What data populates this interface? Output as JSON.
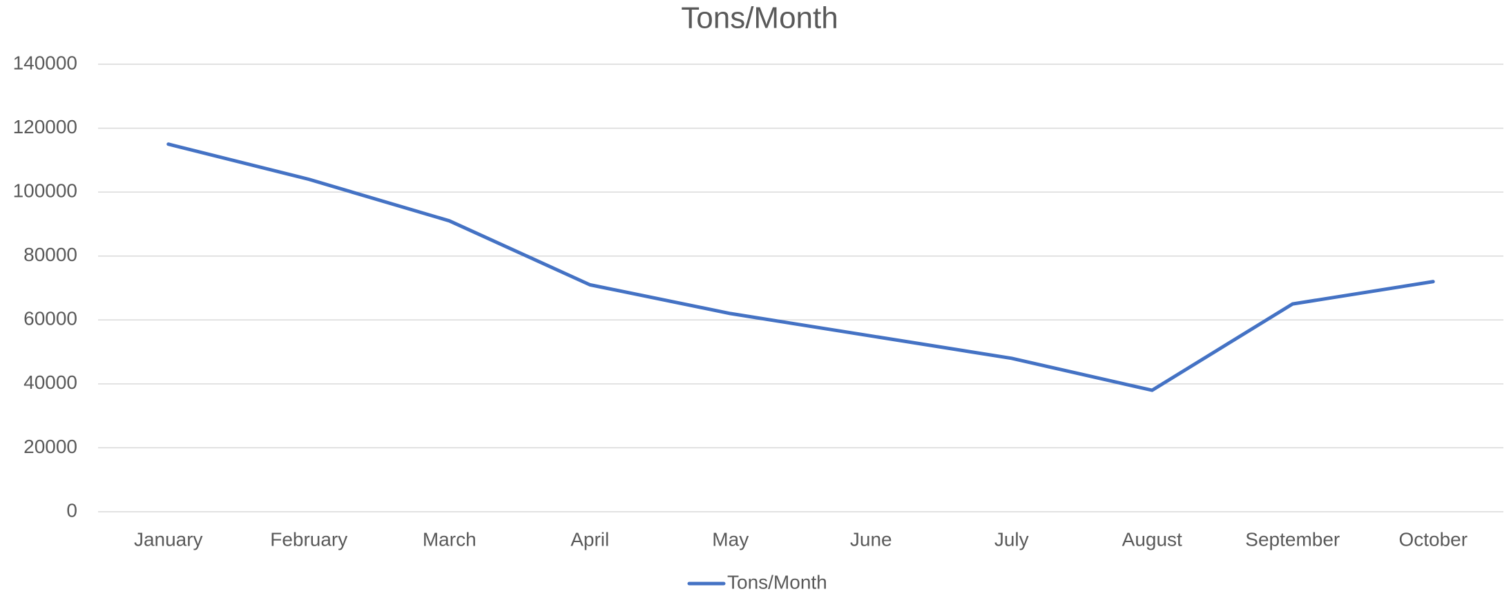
{
  "chart_data": {
    "type": "line",
    "title": "Tons/Month",
    "categories": [
      "January",
      "February",
      "March",
      "April",
      "May",
      "June",
      "July",
      "August",
      "September",
      "October"
    ],
    "series": [
      {
        "name": "Tons/Month",
        "color": "#4472c4",
        "values": [
          115000,
          104000,
          91000,
          71000,
          62000,
          55000,
          48000,
          38000,
          65000,
          72000
        ]
      }
    ],
    "ylim": [
      0,
      140000
    ],
    "yticks": [
      0,
      20000,
      40000,
      60000,
      80000,
      100000,
      120000,
      140000
    ],
    "grid": true,
    "legend": "bottom"
  }
}
